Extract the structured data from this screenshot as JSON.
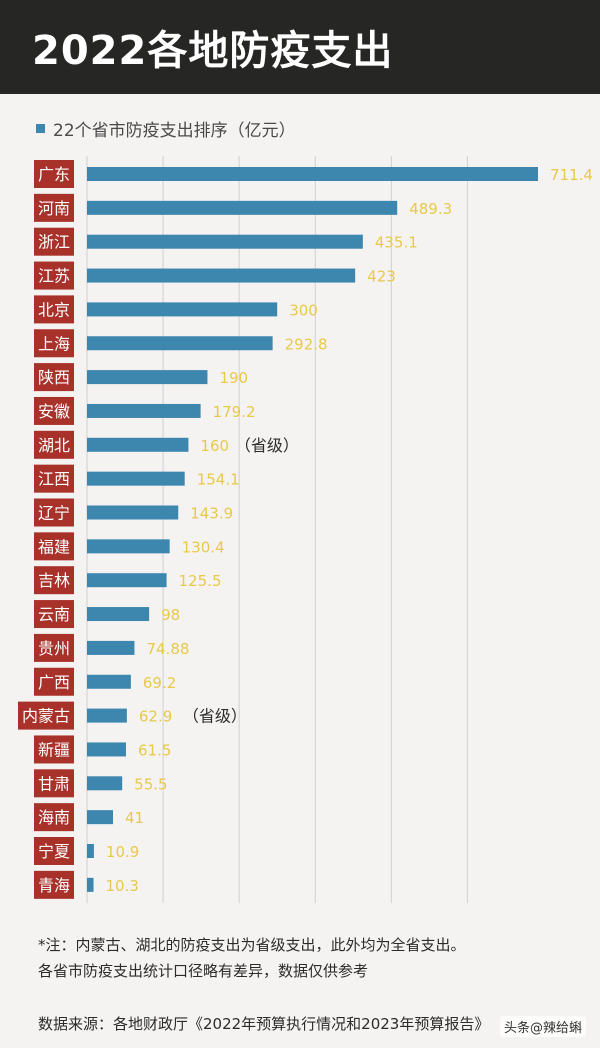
{
  "header": {
    "title": "2022各地防疫支出"
  },
  "chart_data": {
    "type": "bar",
    "orientation": "horizontal",
    "series": [
      {
        "name": "22个省市防疫支出排序（亿元）",
        "color": "#3d86ad"
      }
    ],
    "categories": [
      "广东",
      "河南",
      "浙江",
      "江苏",
      "北京",
      "上海",
      "陕西",
      "安徽",
      "湖北",
      "江西",
      "辽宁",
      "福建",
      "吉林",
      "云南",
      "贵州",
      "广西",
      "内蒙古",
      "新疆",
      "甘肃",
      "海南",
      "宁夏",
      "青海"
    ],
    "values": [
      711.4,
      489.3,
      435.1,
      423,
      300,
      292.8,
      190,
      179.2,
      160,
      154.1,
      143.9,
      130.4,
      125.5,
      98,
      74.88,
      69.2,
      62.9,
      61.5,
      55.5,
      41,
      10.9,
      10.3
    ],
    "value_labels": [
      "711.4",
      "489.3",
      "435.1",
      "423",
      "300",
      "292.8",
      "190",
      "179.2",
      "160",
      "154.1",
      "143.9",
      "130.4",
      "125.5",
      "98",
      "74.88",
      "69.2",
      "62.9",
      "61.5",
      "55.5",
      "41",
      "10.9",
      "10.3"
    ],
    "annotations": {
      "湖北": "（省级）",
      "内蒙古": "（省级）"
    },
    "xlim": [
      0,
      720
    ],
    "grid": true,
    "legend_position": "top-left",
    "colors": {
      "bar": "#3d86ad",
      "category_box": "#a8322a",
      "value_label": "#e8c94a",
      "gridline": "#cfcfcf"
    }
  },
  "notes": [
    "*注：内蒙古、湖北的防疫支出为省级支出，此外均为全省支出。",
    "各省市防疫支出统计口径略有差异，数据仅供参考"
  ],
  "source": "数据来源：各地财政厅《2022年预算执行情况和2023年预算报告》",
  "watermark": "头条@辣给蝌"
}
